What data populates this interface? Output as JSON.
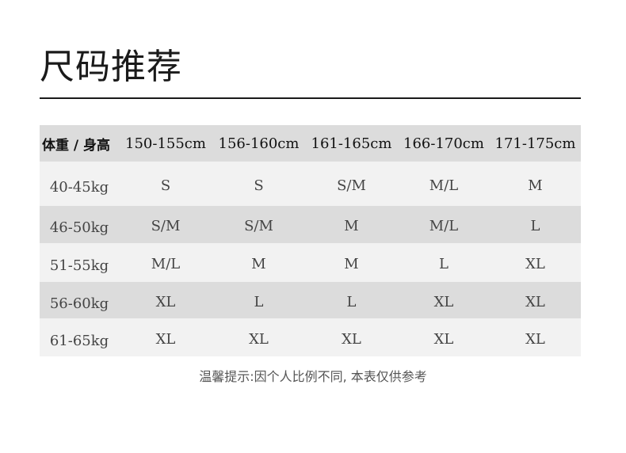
{
  "title": "尺码推荐",
  "table": {
    "corner_label": "体重 / 身高",
    "columns": [
      "150-155cm",
      "156-160cm",
      "161-165cm",
      "166-170cm",
      "171-175cm"
    ],
    "rows": [
      {
        "weight": "40-45kg",
        "sizes": [
          "S",
          "S",
          "S/M",
          "M/L",
          "M"
        ]
      },
      {
        "weight": "46-50kg",
        "sizes": [
          "S/M",
          "S/M",
          "M",
          "M/L",
          "L"
        ]
      },
      {
        "weight": "51-55kg",
        "sizes": [
          "M/L",
          "M",
          "M",
          "L",
          "XL"
        ]
      },
      {
        "weight": "56-60kg",
        "sizes": [
          "XL",
          "L",
          "L",
          "XL",
          "XL"
        ]
      },
      {
        "weight": "61-65kg",
        "sizes": [
          "XL",
          "XL",
          "XL",
          "XL",
          "XL"
        ]
      }
    ]
  },
  "note": "温馨提示:因个人比例不同, 本表仅供参考",
  "colors": {
    "header_bg": "#dcdcdc",
    "row_light": "#f2f2f2",
    "row_dark": "#dcdcdc"
  }
}
